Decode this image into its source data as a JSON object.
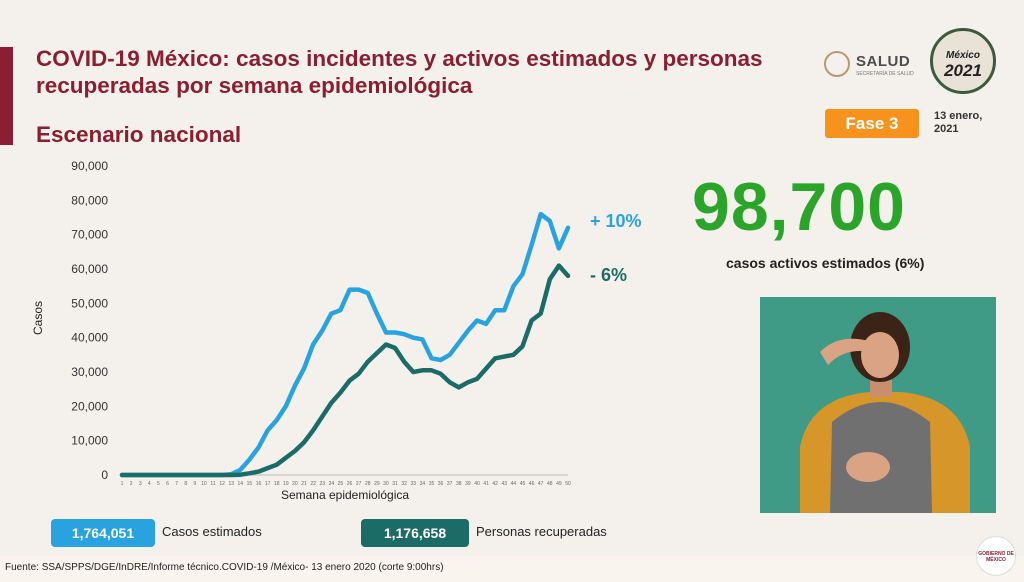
{
  "header": {
    "title": "COVID-19 México: casos incidentes y activos estimados y personas recuperadas por semana epidemiológica",
    "subtitle": "Escenario nacional"
  },
  "logos": {
    "salud_word": "SALUD",
    "salud_sub": "SECRETARÍA DE SALUD",
    "mexico": "México",
    "year": "2021",
    "corner": "GOBIERNO DE MÉXICO"
  },
  "phase": {
    "label": "Fase 3"
  },
  "date": "13 enero, 2021",
  "highlight": {
    "value": "98,700",
    "label": "casos activos estimados (6%)",
    "color": "#2aa52a"
  },
  "changes": {
    "estimados": "+ 10%",
    "recuperadas": "- 6%"
  },
  "totals": {
    "estimados_value": "1,764,051",
    "estimados_label": "Casos estimados",
    "recuperadas_value": "1,176,658",
    "recuperadas_label": "Personas recuperadas"
  },
  "footer": "Fuente: SSA/SPPS/DGE/InDRE/Informe técnico.COVID-19 /México- 13 enero 2020 (corte 9:00hrs)",
  "colors": {
    "estimados": "#29a3e0",
    "recuperadas": "#1b6b66",
    "title": "#8a1f32",
    "phase": "#f7931d"
  },
  "chart_data": {
    "type": "line",
    "xlabel": "Semana epidemiológica",
    "ylabel": "Casos",
    "ylim": [
      0,
      90000
    ],
    "yticks": [
      "0",
      "10,000",
      "20,000",
      "30,000",
      "40,000",
      "50,000",
      "60,000",
      "70,000",
      "80,000",
      "90,000"
    ],
    "grid": false,
    "series": [
      {
        "name": "Casos estimados",
        "color": "#29a3e0",
        "values": [
          0,
          0,
          0,
          0,
          0,
          0,
          0,
          0,
          0,
          0,
          0,
          0,
          200,
          1500,
          4500,
          8000,
          13000,
          16000,
          20000,
          26000,
          31000,
          38000,
          42000,
          47000,
          48000,
          54000,
          54000,
          53000,
          47000,
          41500,
          41500,
          41000,
          40000,
          39500,
          34000,
          33500,
          35000,
          38500,
          42000,
          45000,
          44000,
          48000,
          48000,
          55000,
          58500,
          67000,
          76000,
          74000,
          66000,
          72000
        ]
      },
      {
        "name": "Personas recuperadas",
        "color": "#1b6b66",
        "values": [
          0,
          0,
          0,
          0,
          0,
          0,
          0,
          0,
          0,
          0,
          0,
          0,
          0,
          100,
          500,
          1000,
          2000,
          3000,
          5000,
          7000,
          9500,
          13000,
          17000,
          21000,
          24000,
          27500,
          29500,
          33000,
          35500,
          38000,
          37000,
          33000,
          30000,
          30500,
          30500,
          29500,
          27000,
          25500,
          27000,
          28000,
          31000,
          34000,
          34500,
          35000,
          37500,
          45000,
          47000,
          57000,
          61000,
          58000
        ]
      }
    ]
  }
}
